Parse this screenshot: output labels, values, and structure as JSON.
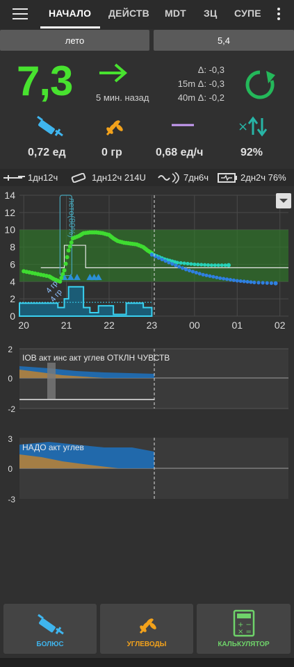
{
  "tabs": [
    "НАЧАЛО",
    "ДЕЙСТВ",
    "MDT",
    "ЗЦ",
    "СУПЕ"
  ],
  "profile": {
    "left": "лето",
    "right": "5,4"
  },
  "bg": {
    "value": "7,3",
    "time_ago": "5 мин. назад"
  },
  "deltas": [
    "Δ: -0,3",
    "15m Δ: -0,3",
    "40m Δ: -0,2"
  ],
  "stats": {
    "iob": "0,72 ед",
    "cob": "0 гр",
    "basal": "0,68 ед/ч",
    "autosens": "92%"
  },
  "status": {
    "cannula": "1дн12ч",
    "reservoir": "1дн12ч 214U",
    "sensor": "7дн6ч",
    "battery": "2дн2ч 76%"
  },
  "main_chart": {
    "y_ticks": [
      "14",
      "12",
      "10",
      "8",
      "6",
      "4",
      "2",
      "0"
    ],
    "x_ticks": [
      "20",
      "21",
      "22",
      "23",
      "00",
      "01",
      "02"
    ],
    "profile_label": "лето(80%)",
    "carb_label_1": "4 гр",
    "carb_label_2": "4 гр"
  },
  "chart2": {
    "label": "IOB акт инс акт углев ОТКЛН ЧУВСТВ",
    "y_ticks": [
      "2",
      "0",
      "-2"
    ]
  },
  "chart3": {
    "label": "НАДО акт углев",
    "y_ticks": [
      "3",
      "0",
      "-3"
    ]
  },
  "chart_data": [
    {
      "type": "scatter",
      "y_ticks": [
        "14",
        "12",
        "10",
        "8",
        "6",
        "4",
        "2",
        "0"
      ],
      "x_ticks": [
        "20",
        "21",
        "22",
        "23",
        "00",
        "01",
        "02"
      ],
      "target_range": [
        4,
        10
      ],
      "ylim": [
        0,
        14
      ],
      "series": [
        {
          "points": [
            [
              20.0,
              5.2
            ],
            [
              20.2,
              5.0
            ],
            [
              20.4,
              4.8
            ],
            [
              20.6,
              4.6
            ],
            [
              20.7,
              4.3
            ],
            [
              20.85,
              4.0
            ],
            [
              20.95,
              5.3
            ],
            [
              21.05,
              7.6
            ],
            [
              21.15,
              9.0
            ],
            [
              21.3,
              9.3
            ],
            [
              21.4,
              9.6
            ],
            [
              21.55,
              9.7
            ],
            [
              21.7,
              9.7
            ],
            [
              21.85,
              9.6
            ],
            [
              22.0,
              9.4
            ],
            [
              22.1,
              9.0
            ],
            [
              22.2,
              8.7
            ],
            [
              22.35,
              8.5
            ],
            [
              22.5,
              8.4
            ],
            [
              22.65,
              8.3
            ],
            [
              22.8,
              8.0
            ],
            [
              22.9,
              7.6
            ],
            [
              23.0,
              7.3
            ]
          ]
        },
        {
          "points": [
            [
              23.0,
              7.2
            ],
            [
              23.3,
              6.6
            ],
            [
              23.6,
              6.2
            ],
            [
              24.0,
              6.0
            ],
            [
              24.4,
              5.9
            ],
            [
              24.8,
              5.9
            ]
          ]
        },
        {
          "points": [
            [
              23.0,
              7.1
            ],
            [
              23.4,
              6.2
            ],
            [
              23.8,
              5.4
            ],
            [
              24.2,
              4.8
            ],
            [
              24.6,
              4.4
            ],
            [
              25.0,
              4.1
            ],
            [
              25.4,
              3.9
            ],
            [
              25.9,
              3.8
            ]
          ]
        }
      ]
    }
  ],
  "buttons": {
    "bolus": "БОЛЮС",
    "carbs": "УГЛЕВОДЫ",
    "calc": "КАЛЬКУЛЯТОР"
  },
  "colors": {
    "bg": "#48e22f",
    "iob": "#1e88e5",
    "cob": "#ff9800",
    "basal": "#3ad1f0",
    "accent": "#27b5a6"
  }
}
